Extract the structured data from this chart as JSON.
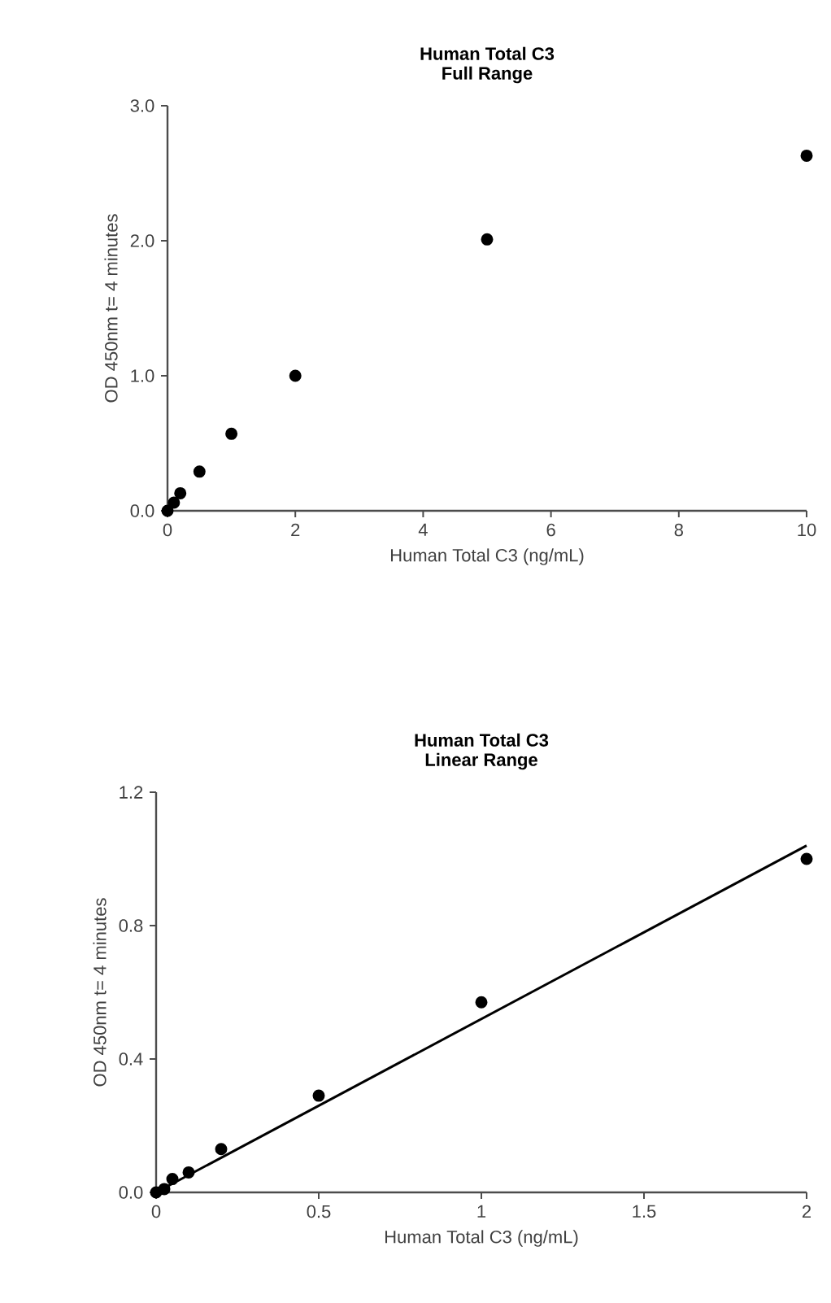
{
  "chart_data": [
    {
      "type": "scatter",
      "title": "Human Total C3",
      "subtitle": "Full Range",
      "xlabel": "Human Total C3 (ng/mL)",
      "ylabel": "OD 450nm t= 4 minutes",
      "xlim": [
        0,
        10
      ],
      "ylim": [
        0,
        3
      ],
      "xticks": [
        0,
        2,
        4,
        6,
        8,
        10
      ],
      "yticks": [
        {
          "value": 0,
          "label": "0.0"
        },
        {
          "value": 1,
          "label": "1.0"
        },
        {
          "value": 2,
          "label": "2.0"
        },
        {
          "value": 3,
          "label": "3.0"
        }
      ],
      "series": [
        {
          "marker": "circle",
          "color": "#000000",
          "x": [
            0,
            0.025,
            0.05,
            0.1,
            0.2,
            0.5,
            1,
            2,
            5,
            10
          ],
          "values": [
            0.0,
            null,
            null,
            0.06,
            0.13,
            0.29,
            0.57,
            1.0,
            2.01,
            2.63
          ]
        }
      ]
    },
    {
      "type": "scatter",
      "title": "Human Total C3",
      "subtitle": "Linear Range",
      "xlabel": "Human Total C3 (ng/mL)",
      "ylabel": "OD 450nm t= 4 minutes",
      "xlim": [
        0,
        2
      ],
      "ylim": [
        0,
        1.2
      ],
      "xticks": [
        0,
        0.5,
        1,
        1.5,
        2
      ],
      "yticks": [
        {
          "value": 0,
          "label": "0.0"
        },
        {
          "value": 0.4,
          "label": "0.4"
        },
        {
          "value": 0.8,
          "label": "0.8"
        },
        {
          "value": 1.2,
          "label": "1.2"
        }
      ],
      "series": [
        {
          "marker": "circle",
          "color": "#000000",
          "x": [
            0,
            0.025,
            0.05,
            0.1,
            0.2,
            0.5,
            1,
            2
          ],
          "values": [
            0.0,
            0.01,
            0.04,
            0.06,
            0.13,
            0.29,
            0.57,
            1.0
          ]
        },
        {
          "type": "line",
          "marker": "none",
          "line_style": "solid",
          "color": "#000000",
          "x": [
            0,
            2
          ],
          "values": [
            0.0,
            1.04
          ]
        }
      ]
    }
  ]
}
